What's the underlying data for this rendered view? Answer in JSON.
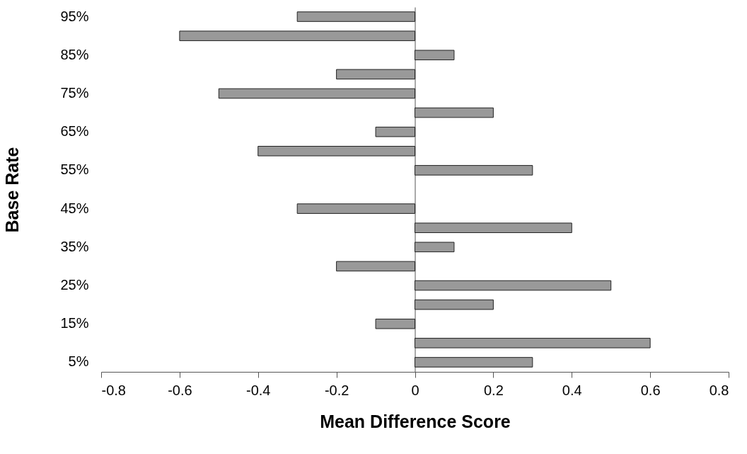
{
  "chart_data": {
    "type": "bar",
    "orientation": "horizontal",
    "xlabel": "Mean Difference Score",
    "ylabel": "Base Rate",
    "categories": [
      "95%",
      null,
      "85%",
      null,
      "75%",
      null,
      "65%",
      null,
      "55%",
      null,
      "45%",
      null,
      "35%",
      null,
      "25%",
      null,
      "15%",
      null,
      "5%"
    ],
    "values": [
      -0.3,
      -0.6,
      0.1,
      -0.2,
      -0.5,
      0.2,
      -0.1,
      -0.4,
      0.3,
      null,
      -0.3,
      0.4,
      0.1,
      -0.2,
      0.5,
      0.2,
      -0.1,
      0.6,
      0.3
    ],
    "color": "#999999",
    "xlim": [
      -0.8,
      0.8
    ],
    "xticks": [
      -0.8,
      -0.6,
      -0.4,
      -0.2,
      0,
      0.2,
      0.4,
      0.6,
      0.8
    ]
  }
}
